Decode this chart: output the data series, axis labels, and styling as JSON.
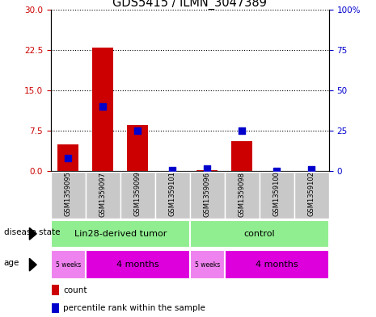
{
  "title": "GDS5415 / ILMN_3047389",
  "samples": [
    "GSM1359095",
    "GSM1359097",
    "GSM1359099",
    "GSM1359101",
    "GSM1359096",
    "GSM1359098",
    "GSM1359100",
    "GSM1359102"
  ],
  "counts": [
    5.0,
    23.0,
    8.5,
    0.1,
    0.2,
    5.5,
    0.1,
    0.1
  ],
  "percentiles": [
    8.0,
    40.0,
    25.0,
    0.5,
    1.5,
    25.0,
    0.3,
    1.0
  ],
  "left_yticks": [
    0,
    7.5,
    15,
    22.5,
    30
  ],
  "right_yticks": [
    0,
    25,
    50,
    75,
    100
  ],
  "ylim_left": [
    0,
    30
  ],
  "ylim_right": [
    0,
    100
  ],
  "bar_color": "#CC0000",
  "dot_color": "#0000CC",
  "bar_width": 0.6,
  "dot_size": 30,
  "legend_items": [
    "count",
    "percentile rank within the sample"
  ],
  "legend_colors": [
    "#CC0000",
    "#0000CC"
  ],
  "sample_box_color": "#C8C8C8",
  "left_ylabel_color": "#CC0000",
  "right_ylabel_color": "#0000CC",
  "ds_color": "#90EE90",
  "age_color_light": "#EE82EE",
  "age_color_dark": "#DD00DD",
  "ds_groups": [
    {
      "label": "Lin28-derived tumor",
      "start": 0,
      "end": 4
    },
    {
      "label": "control",
      "start": 4,
      "end": 8
    }
  ],
  "age_groups": [
    {
      "label": "5 weeks",
      "start": 0,
      "end": 1,
      "light": true
    },
    {
      "label": "4 months",
      "start": 1,
      "end": 4,
      "light": false
    },
    {
      "label": "5 weeks",
      "start": 4,
      "end": 5,
      "light": true
    },
    {
      "label": "4 months",
      "start": 5,
      "end": 8,
      "light": false
    }
  ]
}
